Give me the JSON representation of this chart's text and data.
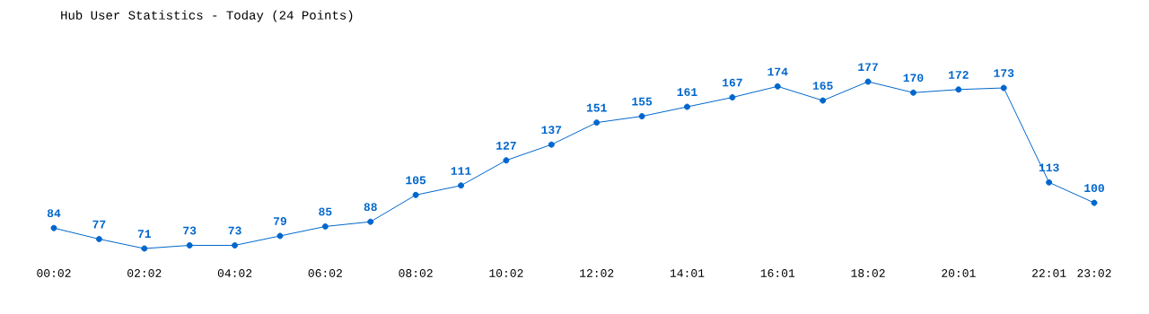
{
  "chart_data": {
    "type": "line",
    "title": "Hub User Statistics - Today (24 Points)",
    "categories": [
      "00:02",
      null,
      "02:02",
      null,
      "04:02",
      null,
      "06:02",
      null,
      "08:02",
      null,
      "10:02",
      null,
      "12:02",
      null,
      "14:01",
      null,
      "16:01",
      null,
      "18:02",
      null,
      "20:01",
      null,
      "22:01",
      "23:02"
    ],
    "values": [
      84,
      77,
      71,
      73,
      73,
      79,
      85,
      88,
      105,
      111,
      127,
      137,
      151,
      155,
      161,
      167,
      174,
      165,
      177,
      170,
      172,
      173,
      113,
      100
    ],
    "color": "#0066cc",
    "marker": "circle",
    "line_style": "solid",
    "data_labels": true,
    "tick_labels": "x"
  }
}
